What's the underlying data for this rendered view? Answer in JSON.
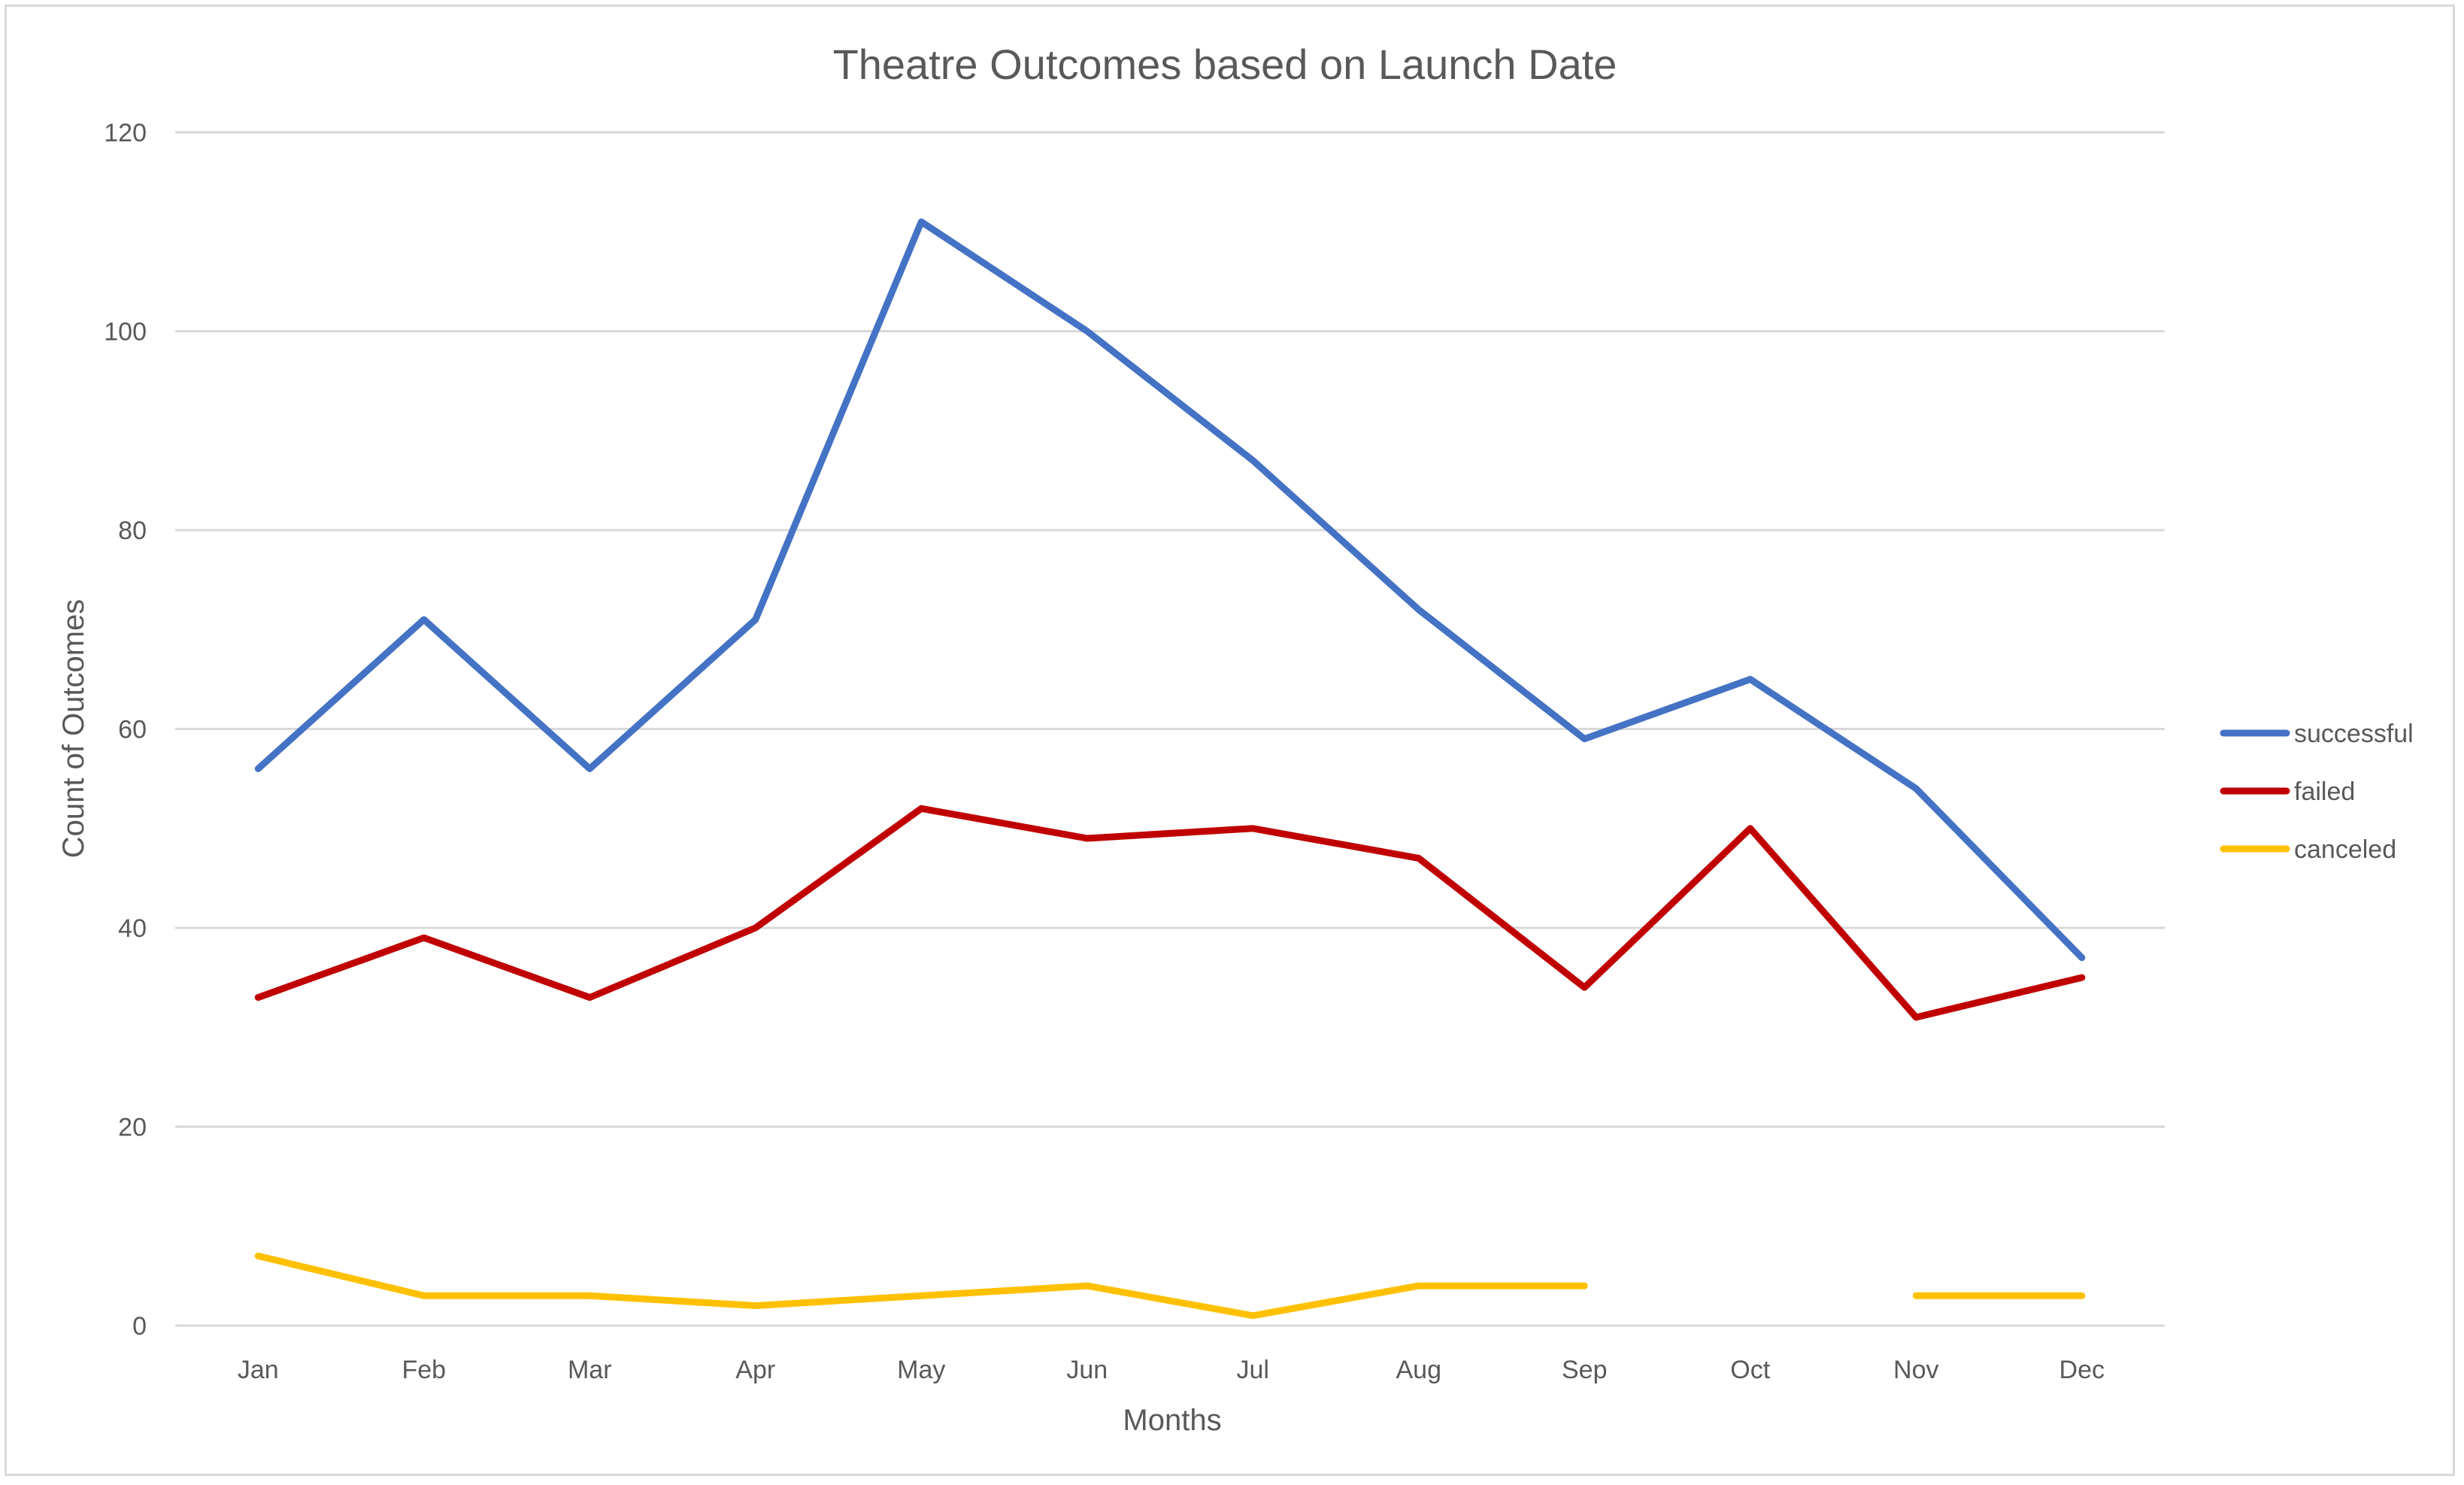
{
  "chart_data": {
    "type": "line",
    "title": "Theatre Outcomes based on Launch Date",
    "xlabel": "Months",
    "ylabel": "Count of Outcomes",
    "categories": [
      "Jan",
      "Feb",
      "Mar",
      "Apr",
      "May",
      "Jun",
      "Jul",
      "Aug",
      "Sep",
      "Oct",
      "Nov",
      "Dec"
    ],
    "ylim": [
      0,
      120
    ],
    "yticks": [
      "0",
      "20",
      "40",
      "60",
      "80",
      "100",
      "120"
    ],
    "grid": true,
    "legend_position": "right",
    "series": [
      {
        "name": "successful",
        "color": "#4472C4",
        "values": [
          56,
          71,
          56,
          71,
          111,
          100,
          87,
          72,
          59,
          65,
          54,
          37
        ]
      },
      {
        "name": "failed",
        "color": "#C00000",
        "values": [
          33,
          39,
          33,
          40,
          52,
          49,
          50,
          47,
          34,
          50,
          31,
          35
        ]
      },
      {
        "name": "canceled",
        "color": "#FFC000",
        "values": [
          7,
          3,
          3,
          2,
          3,
          4,
          1,
          4,
          4,
          null,
          3,
          3
        ]
      }
    ]
  }
}
